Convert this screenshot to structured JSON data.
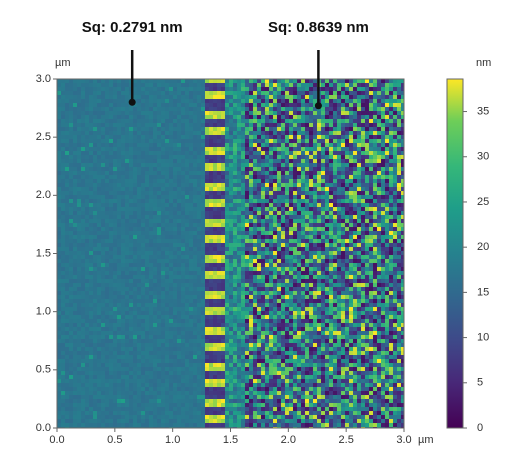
{
  "chart_data": {
    "type": "image",
    "x_unit": "µm",
    "y_unit": "µm",
    "colorbar_unit": "nm",
    "xlim": [
      0,
      3
    ],
    "ylim": [
      0,
      3
    ],
    "xticks": [
      {
        "value": 0,
        "label": "0.0"
      },
      0.5,
      {
        "value": 1,
        "label": "1.0"
      },
      1.5,
      {
        "value": 2,
        "label": "2.0"
      },
      2.5,
      {
        "value": 3,
        "label": "3.0"
      }
    ],
    "yticks": [
      {
        "value": 0,
        "label": "0.0"
      },
      0.5,
      {
        "value": 1,
        "label": "1.0"
      },
      1.5,
      {
        "value": 2,
        "label": "2.0"
      },
      2.5,
      {
        "value": 3,
        "label": "3.0"
      }
    ],
    "clim": [
      0,
      38.6
    ],
    "cticks": [
      0,
      5,
      10,
      15,
      20,
      25,
      30,
      35
    ],
    "colormap": "viridis",
    "annotations": [
      {
        "text": "Sq: 0.2791 nm",
        "x": 0.65,
        "y": 2.8
      },
      {
        "text": "Sq: 0.8639 nm",
        "x": 2.26,
        "y": 2.77
      }
    ]
  }
}
